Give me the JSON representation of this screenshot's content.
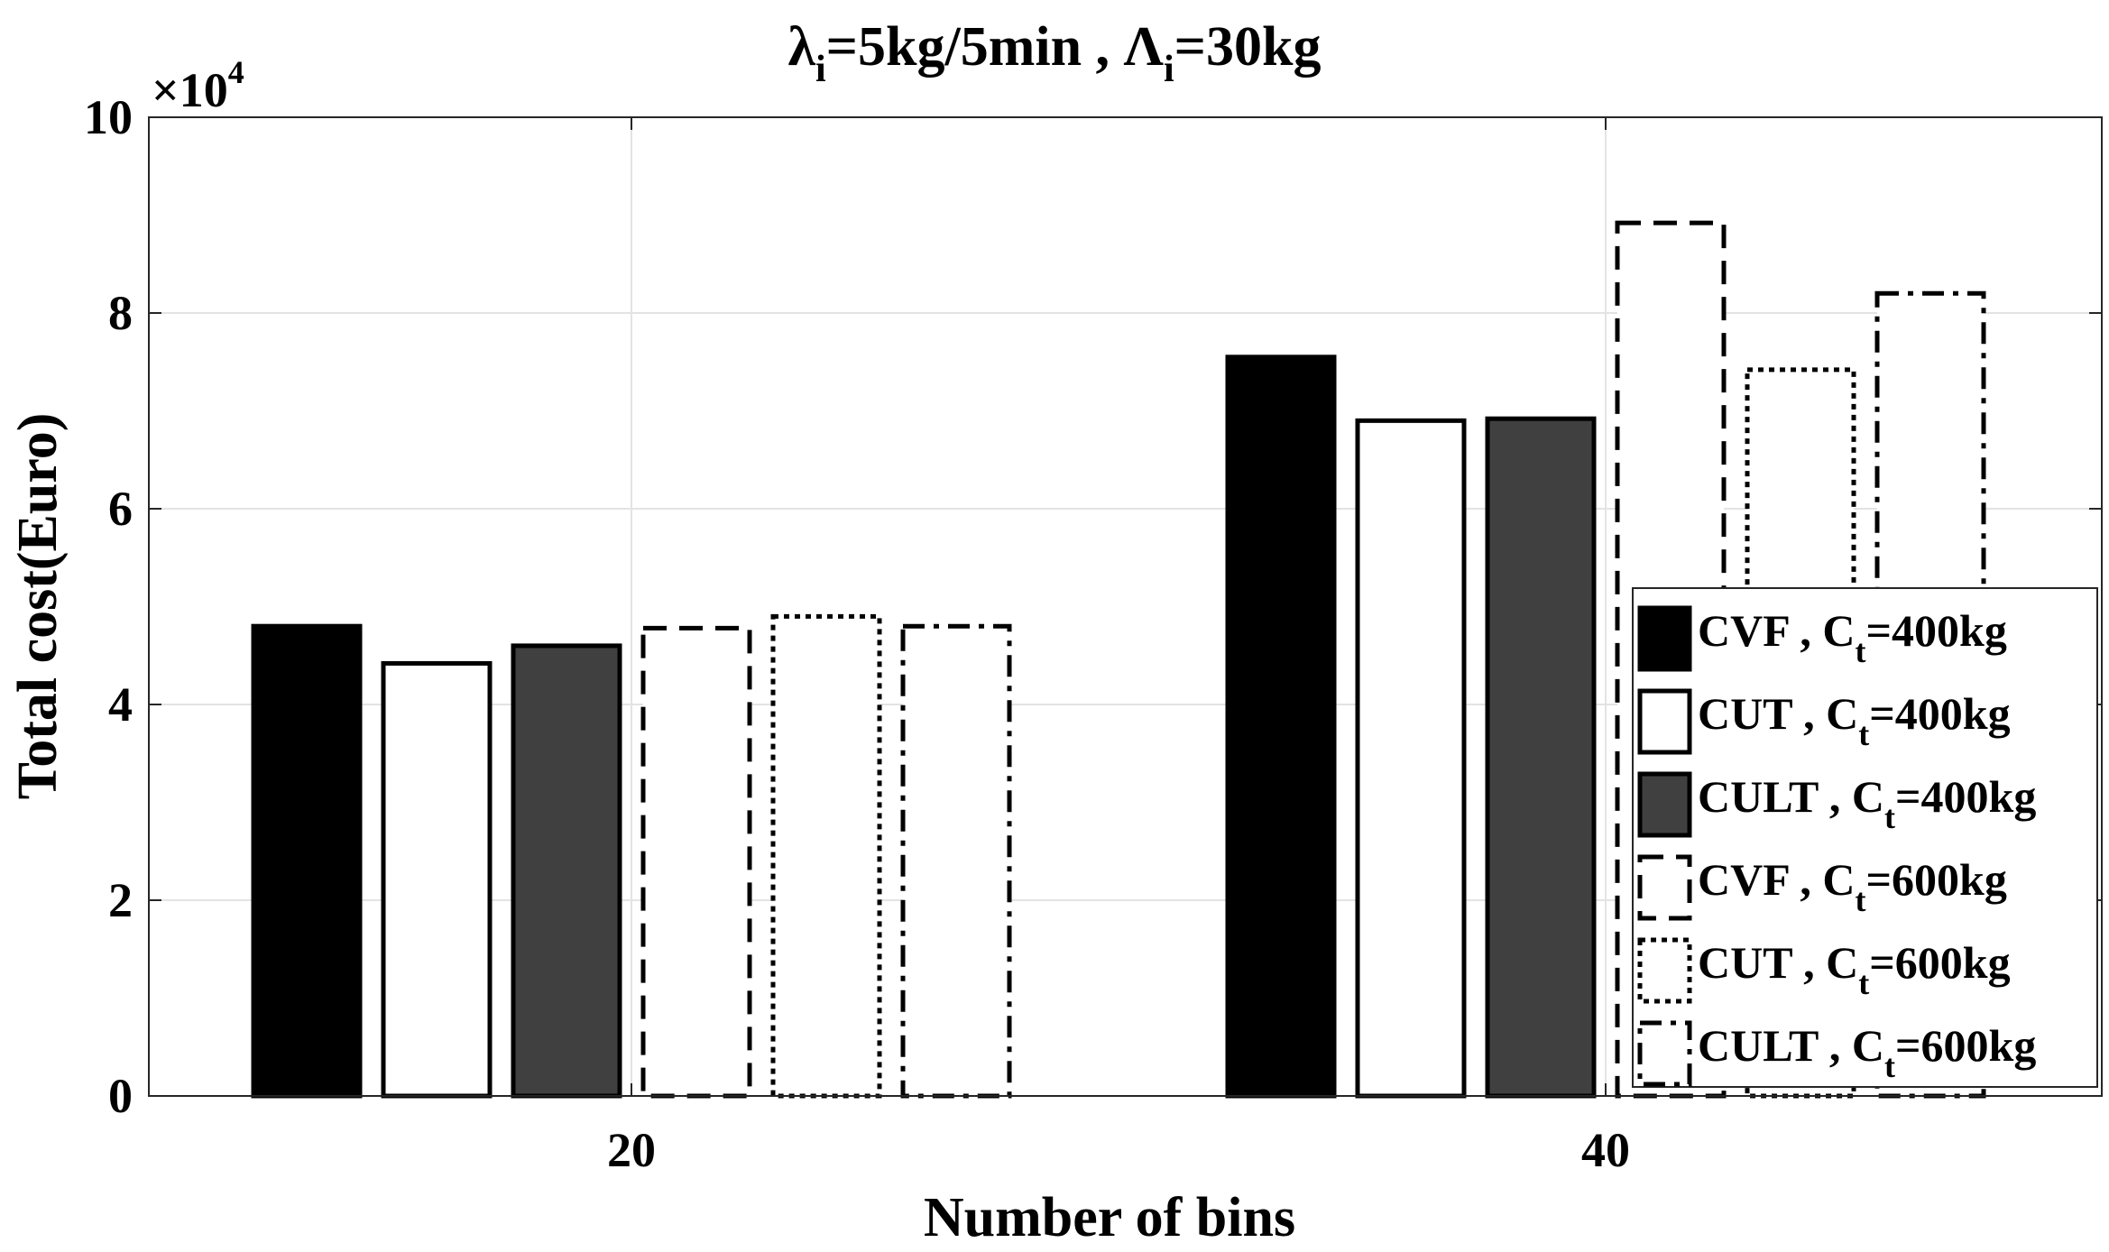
{
  "chart_data": {
    "type": "bar",
    "title_parts": {
      "lambda": "λ",
      "sub1": "i",
      "part1": "=5kg/5min , ",
      "Lambda": "Λ",
      "sub2": "i",
      "part2": "=30kg"
    },
    "xlabel": "Number of bins",
    "ylabel": "Total cost(Euro)",
    "y_exponent_prefix": "×10",
    "y_exponent_power": "4",
    "y_scale": 10000,
    "ylim": [
      0,
      10
    ],
    "yticks": [
      0,
      2,
      4,
      6,
      8,
      10
    ],
    "ytick_labels": [
      "0",
      "2",
      "4",
      "6",
      "8",
      "10"
    ],
    "categories": [
      "20",
      "40"
    ],
    "grid": true,
    "legend_position": "bottom-right",
    "series": [
      {
        "name": "CVF , C",
        "sub": "t",
        "suffix": "=400kg",
        "style": "solid-black",
        "values": [
          4.8,
          7.55
        ]
      },
      {
        "name": "CUT , C",
        "sub": "t",
        "suffix": "=400kg",
        "style": "solid-white",
        "values": [
          4.42,
          6.9
        ]
      },
      {
        "name": "CULT , C",
        "sub": "t",
        "suffix": "=400kg",
        "style": "solid-gray",
        "values": [
          4.6,
          6.92
        ]
      },
      {
        "name": "CVF , C",
        "sub": "t",
        "suffix": "=600kg",
        "style": "dashed",
        "values": [
          4.78,
          8.92
        ]
      },
      {
        "name": "CUT , C",
        "sub": "t",
        "suffix": "=600kg",
        "style": "dotted",
        "values": [
          4.9,
          7.42
        ]
      },
      {
        "name": "CULT , C",
        "sub": "t",
        "suffix": "=600kg",
        "style": "dashdot",
        "values": [
          4.8,
          8.2
        ]
      }
    ]
  }
}
